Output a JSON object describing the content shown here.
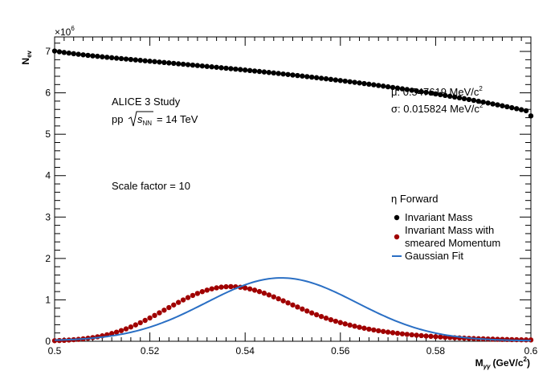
{
  "chart_data": {
    "type": "scatter",
    "xlabel": "M",
    "xlabel_sub": "γγ",
    "xlabel_unit": "(GeV/c",
    "xlabel_unit_sup": "2",
    "xlabel_unit_end": ")",
    "ylabel": "N",
    "ylabel_sub": "ev",
    "y_multiplier": "×10",
    "y_multiplier_exp": "6",
    "xlim": [
      0.5,
      0.6
    ],
    "ylim": [
      0,
      7.35
    ],
    "x_ticks": [
      0.5,
      0.52,
      0.54,
      0.56,
      0.58,
      0.6
    ],
    "x_tick_labels": [
      "0.5",
      "0.52",
      "0.54",
      "0.56",
      "0.58",
      "0.6"
    ],
    "y_ticks": [
      0,
      1,
      2,
      3,
      4,
      5,
      6,
      7
    ],
    "y_tick_labels": [
      "0",
      "1",
      "2",
      "3",
      "4",
      "5",
      "6",
      "7"
    ],
    "grid": false,
    "legend_position": "right",
    "series": [
      {
        "name": "Invariant Mass",
        "kind": "points",
        "color": "#000000",
        "x": [
          0.5,
          0.501,
          0.502,
          0.503,
          0.504,
          0.505,
          0.506,
          0.507,
          0.508,
          0.509,
          0.51,
          0.511,
          0.512,
          0.513,
          0.514,
          0.515,
          0.516,
          0.517,
          0.518,
          0.519,
          0.52,
          0.521,
          0.522,
          0.523,
          0.524,
          0.525,
          0.526,
          0.527,
          0.528,
          0.529,
          0.53,
          0.531,
          0.532,
          0.533,
          0.534,
          0.535,
          0.536,
          0.537,
          0.538,
          0.539,
          0.54,
          0.541,
          0.542,
          0.543,
          0.544,
          0.545,
          0.546,
          0.547,
          0.548,
          0.549,
          0.55,
          0.551,
          0.552,
          0.553,
          0.554,
          0.555,
          0.556,
          0.557,
          0.558,
          0.559,
          0.56,
          0.561,
          0.562,
          0.563,
          0.564,
          0.565,
          0.566,
          0.567,
          0.568,
          0.569,
          0.57,
          0.571,
          0.572,
          0.573,
          0.574,
          0.575,
          0.576,
          0.577,
          0.578,
          0.579,
          0.58,
          0.581,
          0.582,
          0.583,
          0.584,
          0.585,
          0.586,
          0.587,
          0.588,
          0.589,
          0.59,
          0.591,
          0.592,
          0.593,
          0.594,
          0.595,
          0.596,
          0.597,
          0.598,
          0.599,
          0.6
        ],
        "y": [
          7.01,
          6.992,
          6.975,
          6.96,
          6.945,
          6.931,
          6.918,
          6.905,
          6.893,
          6.882,
          6.87,
          6.859,
          6.848,
          6.837,
          6.827,
          6.816,
          6.806,
          6.795,
          6.785,
          6.774,
          6.764,
          6.754,
          6.743,
          6.733,
          6.722,
          6.712,
          6.701,
          6.691,
          6.68,
          6.67,
          6.66,
          6.649,
          6.638,
          6.628,
          6.617,
          6.606,
          6.595,
          6.584,
          6.573,
          6.562,
          6.55,
          6.539,
          6.527,
          6.516,
          6.504,
          6.492,
          6.48,
          6.468,
          6.455,
          6.443,
          6.43,
          6.418,
          6.405,
          6.392,
          6.379,
          6.366,
          6.352,
          6.339,
          6.325,
          6.311,
          6.297,
          6.283,
          6.268,
          6.254,
          6.239,
          6.224,
          6.209,
          6.194,
          6.178,
          6.162,
          6.146,
          6.13,
          6.114,
          6.097,
          6.08,
          6.063,
          6.046,
          6.028,
          6.011,
          5.993,
          5.974,
          5.956,
          5.937,
          5.918,
          5.899,
          5.879,
          5.859,
          5.839,
          5.818,
          5.797,
          5.776,
          5.754,
          5.732,
          5.71,
          5.687,
          5.664,
          5.641,
          5.617,
          5.593,
          5.568,
          5.442
        ]
      },
      {
        "name": "Invariant Mass with smeared Momentum",
        "kind": "points",
        "color": "#a00000",
        "x": [
          0.5,
          0.501,
          0.502,
          0.503,
          0.504,
          0.505,
          0.506,
          0.507,
          0.508,
          0.509,
          0.51,
          0.511,
          0.512,
          0.513,
          0.514,
          0.515,
          0.516,
          0.517,
          0.518,
          0.519,
          0.52,
          0.521,
          0.522,
          0.523,
          0.524,
          0.525,
          0.526,
          0.527,
          0.528,
          0.529,
          0.53,
          0.531,
          0.532,
          0.533,
          0.534,
          0.535,
          0.536,
          0.537,
          0.538,
          0.539,
          0.54,
          0.541,
          0.542,
          0.543,
          0.544,
          0.545,
          0.546,
          0.547,
          0.548,
          0.549,
          0.55,
          0.551,
          0.552,
          0.553,
          0.554,
          0.555,
          0.556,
          0.557,
          0.558,
          0.559,
          0.56,
          0.561,
          0.562,
          0.563,
          0.564,
          0.565,
          0.566,
          0.567,
          0.568,
          0.569,
          0.57,
          0.571,
          0.572,
          0.573,
          0.574,
          0.575,
          0.576,
          0.577,
          0.578,
          0.579,
          0.58,
          0.581,
          0.582,
          0.583,
          0.584,
          0.585,
          0.586,
          0.587,
          0.588,
          0.589,
          0.59,
          0.591,
          0.592,
          0.593,
          0.594,
          0.595,
          0.596,
          0.597,
          0.598,
          0.599,
          0.6
        ],
        "y": [
          0.014,
          0.018,
          0.023,
          0.03,
          0.038,
          0.047,
          0.059,
          0.073,
          0.089,
          0.108,
          0.131,
          0.157,
          0.187,
          0.22,
          0.258,
          0.299,
          0.345,
          0.395,
          0.448,
          0.504,
          0.563,
          0.624,
          0.687,
          0.751,
          0.814,
          0.877,
          0.939,
          0.998,
          1.055,
          1.107,
          1.155,
          1.198,
          1.235,
          1.266,
          1.29,
          1.307,
          1.317,
          1.32,
          1.316,
          1.305,
          1.288,
          1.264,
          1.234,
          1.2,
          1.161,
          1.119,
          1.073,
          1.026,
          0.977,
          0.927,
          0.877,
          0.827,
          0.778,
          0.73,
          0.684,
          0.64,
          0.598,
          0.558,
          0.52,
          0.484,
          0.451,
          0.42,
          0.391,
          0.364,
          0.338,
          0.315,
          0.293,
          0.273,
          0.254,
          0.237,
          0.221,
          0.206,
          0.192,
          0.179,
          0.167,
          0.156,
          0.146,
          0.136,
          0.127,
          0.119,
          0.111,
          0.104,
          0.097,
          0.091,
          0.085,
          0.08,
          0.075,
          0.07,
          0.066,
          0.062,
          0.058,
          0.055,
          0.051,
          0.048,
          0.045,
          0.043,
          0.04,
          0.038,
          0.036,
          0.034,
          0.032
        ]
      },
      {
        "name": "Gaussian Fit",
        "kind": "line",
        "color": "#2a6fc4",
        "mean": 0.547619,
        "sigma": 0.015824,
        "amplitude": 1.52,
        "x_range": [
          0.5,
          0.6
        ]
      }
    ],
    "annotations": {
      "study": "ALICE 3 Study",
      "collision_prefix": "pp",
      "sqrt_s": "s",
      "sqrt_s_sub": "NN",
      "energy": "= 14 TeV",
      "scale_factor": "Scale factor = 10",
      "mu": "μ: 0.547619 MeV/c",
      "mu_sup": "2",
      "sigma": "σ: 0.015824 MeV/c",
      "sigma_sup": "2",
      "legend_header": "η Forward"
    },
    "legend": [
      {
        "label_lines": [
          "Invariant Mass"
        ],
        "marker": "dot",
        "color": "#000000"
      },
      {
        "label_lines": [
          "Invariant Mass with",
          "smeared Momentum"
        ],
        "marker": "dot",
        "color": "#a00000"
      },
      {
        "label_lines": [
          "Gaussian Fit"
        ],
        "marker": "line",
        "color": "#2a6fc4"
      }
    ]
  }
}
